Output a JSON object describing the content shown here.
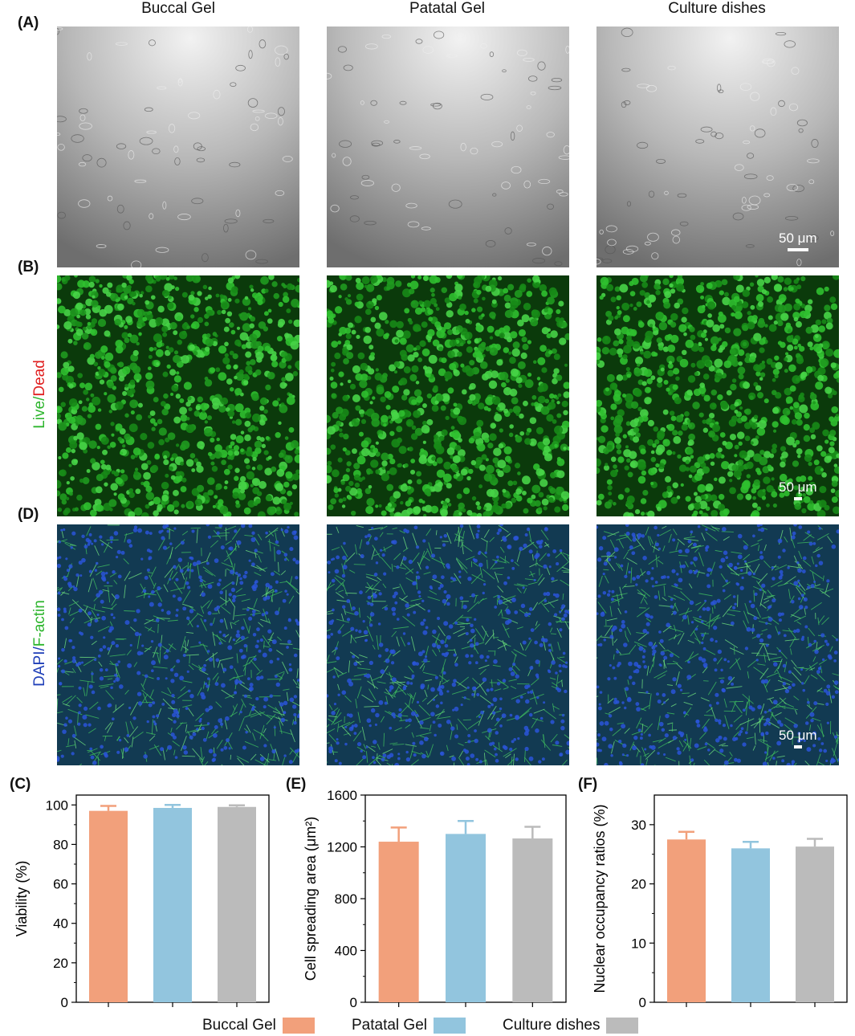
{
  "columns": [
    "Buccal Gel",
    "Patatal Gel",
    "Culture dishes"
  ],
  "panels": {
    "A": "(A)",
    "B": "(B)",
    "D": "(D)",
    "C": "(C)",
    "E": "(E)",
    "F": "(F)"
  },
  "row_labels": {
    "live_part": "Live/",
    "dead_part": "Dead",
    "dapi_part": "DAPI/",
    "factin_part": "F-actin"
  },
  "scale_bar": "50 μm",
  "colors": {
    "buccal": "#F2A07B",
    "patatal": "#92C5DE",
    "culture": "#BBBBBB",
    "live": "#2DB52D",
    "dead": "#E02020",
    "dapi": "#1F3FB8",
    "factin": "#2DB52D"
  },
  "legend": [
    "Buccal Gel",
    "Patatal Gel",
    "Culture dishes"
  ],
  "chart_data": [
    {
      "id": "C",
      "type": "bar",
      "categories": [
        "Buccal Gel",
        "Patatal Gel",
        "Culture dishes"
      ],
      "values": [
        97,
        98.5,
        99
      ],
      "errors": [
        2.5,
        1.5,
        0.8
      ],
      "ylabel": "Viability (%)",
      "ylim": [
        0,
        105
      ],
      "yticks": [
        0,
        20,
        40,
        60,
        80,
        100
      ]
    },
    {
      "id": "E",
      "type": "bar",
      "categories": [
        "Buccal Gel",
        "Patatal Gel",
        "Culture dishes"
      ],
      "values": [
        1240,
        1300,
        1265
      ],
      "errors": [
        110,
        100,
        90
      ],
      "ylabel": "Cell spreading area (μm²)",
      "ylim": [
        0,
        1600
      ],
      "yticks": [
        0,
        400,
        800,
        1200,
        1600
      ]
    },
    {
      "id": "F",
      "type": "bar",
      "categories": [
        "Buccal Gel",
        "Patatal Gel",
        "Culture dishes"
      ],
      "values": [
        27.5,
        26,
        26.3
      ],
      "errors": [
        1.3,
        1.1,
        1.3
      ],
      "ylabel": "Nuclear occupancy ratios (%)",
      "ylim": [
        0,
        35
      ],
      "yticks": [
        0,
        10,
        20,
        30
      ]
    }
  ]
}
